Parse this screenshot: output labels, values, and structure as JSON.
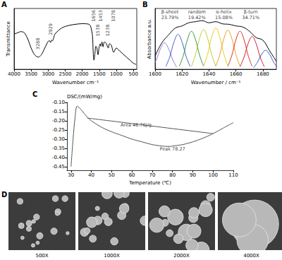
{
  "chart_data": [
    {
      "panel_label": "A",
      "type": "line",
      "x_label": "Wavenumber cm⁻¹",
      "y_label": "Transmittance",
      "xlim": [
        400,
        4000
      ],
      "xticks": [
        500,
        1000,
        1500,
        2000,
        2500,
        3000,
        3500,
        4000
      ],
      "ylim": [
        0,
        100
      ],
      "tick_labels": "x",
      "grid": false,
      "series": [
        {
          "color": "#000000",
          "x": [
            4000,
            3900,
            3800,
            3700,
            3600,
            3500,
            3400,
            3288,
            3200,
            3100,
            3000,
            2960,
            2929,
            2900,
            2871,
            2800,
            2600,
            2400,
            2200,
            2000,
            1800,
            1750,
            1700,
            1680,
            1656,
            1630,
            1600,
            1570,
            1538,
            1500,
            1470,
            1453,
            1420,
            1391,
            1350,
            1300,
            1238,
            1200,
            1150,
            1078,
            1000,
            900,
            800,
            700,
            600,
            500,
            420
          ],
          "values": [
            58,
            60,
            62,
            60,
            50,
            35,
            24,
            20,
            24,
            35,
            46,
            47,
            44,
            48,
            47,
            58,
            68,
            72,
            74,
            75,
            74,
            70,
            55,
            30,
            15,
            25,
            38,
            35,
            24,
            38,
            42,
            38,
            45,
            37,
            45,
            43,
            35,
            42,
            40,
            28,
            35,
            30,
            25,
            20,
            15,
            10,
            8
          ]
        }
      ],
      "annotations": [
        {
          "text": "3288",
          "x": 3288,
          "y": 42
        },
        {
          "text": "2929",
          "x": 2929,
          "y": 66
        },
        {
          "text": "1656",
          "x": 1656,
          "y": 88
        },
        {
          "text": "1538",
          "x": 1538,
          "y": 64
        },
        {
          "text": "1453",
          "x": 1453,
          "y": 88
        },
        {
          "text": "1238",
          "x": 1238,
          "y": 64
        },
        {
          "text": "1078",
          "x": 1078,
          "y": 88
        }
      ]
    },
    {
      "panel_label": "B",
      "type": "line",
      "x_label": "Wavenumber / cm⁻¹",
      "y_label": "Absorbance a.u.",
      "xlim": [
        1600,
        1690
      ],
      "xticks": [
        1600,
        1620,
        1640,
        1660,
        1680
      ],
      "ylim": [
        0,
        1.15
      ],
      "tick_labels": "x",
      "grid": false,
      "series": [
        {
          "color": "#8a7fd8",
          "x": [
            1598,
            1601,
            1604,
            1607,
            1610,
            1613,
            1616
          ],
          "values": [
            0.04,
            0.185,
            0.39,
            0.5,
            0.39,
            0.185,
            0.04
          ]
        },
        {
          "color": "#4a5fd0",
          "x": [
            1608,
            1611,
            1614,
            1617,
            1620,
            1623,
            1626
          ],
          "values": [
            0.053,
            0.244,
            0.515,
            0.66,
            0.515,
            0.244,
            0.053
          ]
        },
        {
          "color": "#2e9e3e",
          "x": [
            1618,
            1621,
            1624,
            1627,
            1630,
            1633,
            1636
          ],
          "values": [
            0.058,
            0.266,
            0.562,
            0.72,
            0.562,
            0.266,
            0.058
          ]
        },
        {
          "color": "#b8d030",
          "x": [
            1627,
            1630,
            1633,
            1636,
            1639,
            1642,
            1645
          ],
          "values": [
            0.06,
            0.278,
            0.585,
            0.75,
            0.585,
            0.278,
            0.06
          ]
        },
        {
          "color": "#e8d020",
          "x": [
            1636,
            1639,
            1642,
            1645,
            1648,
            1651,
            1654
          ],
          "values": [
            0.062,
            0.289,
            0.608,
            0.78,
            0.608,
            0.289,
            0.062
          ]
        },
        {
          "color": "#f0a020",
          "x": [
            1645,
            1648,
            1651,
            1654,
            1657,
            1660,
            1663
          ],
          "values": [
            0.059,
            0.274,
            0.577,
            0.74,
            0.577,
            0.274,
            0.059
          ]
        },
        {
          "color": "#e03020",
          "x": [
            1654,
            1657,
            1660,
            1663,
            1666,
            1669,
            1672
          ],
          "values": [
            0.058,
            0.266,
            0.562,
            0.72,
            0.562,
            0.266,
            0.058
          ]
        },
        {
          "color": "#d02030",
          "x": [
            1663,
            1666,
            1669,
            1672,
            1675,
            1678,
            1681
          ],
          "values": [
            0.05,
            0.229,
            0.484,
            0.62,
            0.484,
            0.229,
            0.05
          ]
        },
        {
          "color": "#4060c0",
          "x": [
            1673,
            1676,
            1679,
            1682,
            1685,
            1688,
            1691
          ],
          "values": [
            0.029,
            0.133,
            0.281,
            0.36,
            0.281,
            0.133,
            0.029
          ]
        },
        {
          "color": "#000000",
          "x": [
            1600,
            1605,
            1610,
            1615,
            1620,
            1625,
            1630,
            1635,
            1640,
            1645,
            1650,
            1655,
            1660,
            1665,
            1670,
            1675,
            1680,
            1685,
            1690
          ],
          "values": [
            0.25,
            0.5,
            0.65,
            0.78,
            0.82,
            0.88,
            0.9,
            0.92,
            0.88,
            0.9,
            0.86,
            0.85,
            0.82,
            0.8,
            0.72,
            0.6,
            0.55,
            0.35,
            0.15
          ]
        }
      ],
      "annotations": [
        {
          "text": "β-sheet 23.79%",
          "x": 1611,
          "y": 1.03
        },
        {
          "text": "random 19.42%",
          "x": 1631,
          "y": 1.03
        },
        {
          "text": "α-helix 15.08%",
          "x": 1651,
          "y": 1.03
        },
        {
          "text": "β-turn 34.71%",
          "x": 1671,
          "y": 1.03
        }
      ]
    },
    {
      "panel_label": "C",
      "type": "line",
      "x_label": "Temperature (℃)",
      "y_label": "DSC/(mW/mg)",
      "xlim": [
        28,
        110
      ],
      "xticks": [
        30,
        40,
        50,
        60,
        70,
        80,
        90,
        100,
        110
      ],
      "ylim": [
        -0.47,
        -0.1
      ],
      "yticks": [
        {
          "value": -0.45,
          "label": "-0.45"
        },
        {
          "value": -0.4,
          "label": "-0.40"
        },
        {
          "value": -0.35,
          "label": "-0.35"
        },
        {
          "value": -0.3,
          "label": "-0.30"
        },
        {
          "value": -0.25,
          "label": "-0.25"
        },
        {
          "value": -0.2,
          "label": "-0.20"
        },
        {
          "value": -0.15,
          "label": "-0.15"
        },
        {
          "value": -0.1,
          "label": "-0.10"
        }
      ],
      "grid": false,
      "series": [
        {
          "color": "#555555",
          "x": [
            30,
            31,
            32,
            33,
            35,
            38,
            40,
            45,
            50,
            55,
            60,
            65,
            70,
            75,
            78,
            80,
            85,
            90,
            95,
            100,
            105,
            110
          ],
          "values": [
            -0.45,
            -0.3,
            -0.18,
            -0.12,
            -0.14,
            -0.18,
            -0.2,
            -0.235,
            -0.26,
            -0.28,
            -0.3,
            -0.315,
            -0.33,
            -0.338,
            -0.34,
            -0.338,
            -0.33,
            -0.315,
            -0.295,
            -0.27,
            -0.24,
            -0.21
          ]
        },
        {
          "color": "#555555",
          "x": [
            38,
            100
          ],
          "values": [
            -0.185,
            -0.27
          ]
        }
      ],
      "annotations": [
        {
          "text": "Area 46.76J/g",
          "x": 62,
          "y": -0.222
        },
        {
          "text": "Peak 78.27",
          "x": 80,
          "y": -0.356
        }
      ]
    }
  ],
  "panel_D": {
    "panel_label": "D",
    "images": [
      "500X",
      "1000X",
      "2000X",
      "4000X"
    ]
  }
}
